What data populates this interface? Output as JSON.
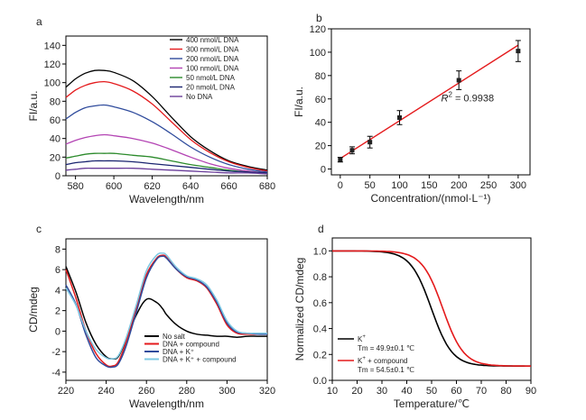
{
  "chart_data": [
    {
      "panel": "a",
      "type": "line",
      "xlabel": "Wavelength/nm",
      "ylabel": "FI/a.u.",
      "xlim": [
        575,
        680
      ],
      "ylim": [
        0,
        150
      ],
      "xticks": [
        580,
        600,
        620,
        640,
        660,
        680
      ],
      "yticks": [
        0,
        20,
        40,
        60,
        80,
        100,
        120,
        140
      ],
      "legend_position": "top-right",
      "x": [
        575,
        580,
        585,
        590,
        595,
        600,
        610,
        620,
        630,
        640,
        650,
        660,
        670,
        680
      ],
      "series": [
        {
          "name": "400 nmol/L DNA",
          "color": "#000000",
          "values": [
            95,
            104,
            110,
            113,
            113,
            111,
            102,
            85,
            63,
            42,
            27,
            16,
            10,
            6
          ]
        },
        {
          "name": "300 nmol/L DNA",
          "color": "#e41a1c",
          "values": [
            84,
            92,
            97,
            100,
            101,
            99,
            91,
            77,
            58,
            39,
            25,
            15,
            9,
            5
          ]
        },
        {
          "name": "200 nmol/L DNA",
          "color": "#2f4b9c",
          "values": [
            61,
            68,
            73,
            75,
            76,
            74,
            68,
            58,
            45,
            31,
            20,
            12,
            7,
            4
          ]
        },
        {
          "name": "100 nmol/L DNA",
          "color": "#b343b3",
          "values": [
            34,
            38,
            41,
            43,
            44,
            43,
            40,
            35,
            28,
            20,
            13,
            8,
            5,
            3
          ]
        },
        {
          "name": "50 nmol/L DNA",
          "color": "#2b8a2b",
          "values": [
            19,
            21,
            23,
            24,
            24,
            24,
            22,
            20,
            16,
            12,
            9,
            6,
            4,
            3
          ]
        },
        {
          "name": "20 nmol/L DNA",
          "color": "#1a2470",
          "values": [
            12,
            14,
            15,
            16,
            16,
            16,
            15,
            13,
            11,
            9,
            7,
            5,
            4,
            3
          ]
        },
        {
          "name": "No DNA",
          "color": "#6a3d9a",
          "values": [
            6,
            7,
            8,
            8,
            8,
            8,
            8,
            7,
            6,
            5,
            4,
            3,
            3,
            2
          ]
        }
      ]
    },
    {
      "panel": "b",
      "type": "scatter",
      "xlabel": "Concentration/(nmol·L⁻¹)",
      "ylabel": "FI/a.u.",
      "xlim": [
        -15,
        320
      ],
      "ylim": [
        -5,
        120
      ],
      "xticks": [
        0,
        50,
        100,
        150,
        200,
        250,
        300
      ],
      "yticks": [
        0,
        20,
        40,
        60,
        80,
        100,
        120
      ],
      "points": [
        {
          "x": 0,
          "y": 8,
          "err": 2
        },
        {
          "x": 20,
          "y": 16,
          "err": 3
        },
        {
          "x": 50,
          "y": 23,
          "err": 5
        },
        {
          "x": 100,
          "y": 44,
          "err": 6
        },
        {
          "x": 200,
          "y": 76,
          "err": 8
        },
        {
          "x": 300,
          "y": 101,
          "err": 9
        }
      ],
      "fit": {
        "x": [
          0,
          300
        ],
        "y": [
          9,
          106
        ],
        "color": "#e41a1c"
      },
      "annotation_r": "R",
      "annotation_sup": "2",
      "annotation_value": " = 0.9938"
    },
    {
      "panel": "c",
      "type": "line",
      "xlabel": "Wavelength/nm",
      "ylabel": "CD/mdeg",
      "xlim": [
        220,
        320
      ],
      "ylim": [
        -4.8,
        9
      ],
      "xticks": [
        220,
        240,
        260,
        280,
        300,
        320
      ],
      "yticks": [
        -4,
        -2,
        0,
        2,
        4,
        6,
        8
      ],
      "legend_position": "bottom-center",
      "x": [
        220,
        225,
        230,
        235,
        240,
        243,
        246,
        250,
        255,
        260,
        265,
        268,
        270,
        275,
        280,
        285,
        290,
        295,
        300,
        305,
        310,
        315,
        320
      ],
      "series": [
        {
          "name": "No salt",
          "color": "#000000",
          "values": [
            6.3,
            3.8,
            0.8,
            -1.3,
            -2.5,
            -2.7,
            -2.5,
            -0.8,
            1.6,
            3.1,
            2.8,
            2.2,
            1.6,
            0.6,
            0.0,
            -0.3,
            -0.4,
            -0.5,
            -0.5,
            -0.6,
            -0.5,
            -0.5,
            -0.5
          ]
        },
        {
          "name": "DNA + compound",
          "color": "#e41a1c",
          "values": [
            6.0,
            3.2,
            0.0,
            -2.2,
            -3.3,
            -3.4,
            -3.0,
            -1.0,
            2.3,
            5.5,
            7.1,
            7.4,
            7.2,
            6.0,
            5.2,
            4.9,
            4.2,
            2.6,
            0.6,
            -0.2,
            -0.3,
            -0.3,
            -0.3
          ]
        },
        {
          "name": "DNA + K⁺",
          "color": "#2f4b9c",
          "values": [
            4.5,
            2.6,
            -0.4,
            -2.6,
            -3.4,
            -3.5,
            -3.2,
            -1.4,
            1.9,
            5.2,
            7.0,
            7.3,
            7.1,
            6.0,
            5.3,
            5.0,
            4.3,
            2.8,
            0.8,
            -0.1,
            -0.2,
            -0.3,
            -0.3
          ]
        },
        {
          "name": "DNA + K⁺ + compound",
          "color": "#7ec8e3",
          "values": [
            4.2,
            2.5,
            0.0,
            -1.8,
            -2.6,
            -2.7,
            -2.4,
            -0.6,
            2.6,
            5.9,
            7.4,
            7.6,
            7.4,
            6.2,
            5.4,
            5.1,
            4.5,
            3.0,
            1.0,
            0.0,
            -0.2,
            -0.2,
            -0.2
          ]
        }
      ]
    },
    {
      "panel": "d",
      "type": "line",
      "xlabel": "Temperature/℃",
      "ylabel": "Normalized CD/mdeg",
      "xlim": [
        10,
        90
      ],
      "ylim": [
        0,
        1.1
      ],
      "xticks": [
        10,
        20,
        30,
        40,
        50,
        60,
        70,
        80,
        90
      ],
      "yticks": [
        0.0,
        0.2,
        0.4,
        0.6,
        0.8,
        1.0
      ],
      "legend_position": "bottom-left",
      "series": [
        {
          "name": "K",
          "name_sup": "+",
          "tm_label": "Tm = 49.9±0.1 ℃",
          "color": "#000000",
          "tm": 49.9,
          "width": 4.2,
          "low": 0.11,
          "high": 1.0
        },
        {
          "name": "K",
          "name_sup": "+",
          "name_suffix": " + compound",
          "tm_label": "Tm = 54.5±0.1 ℃",
          "color": "#e41a1c",
          "tm": 54.5,
          "width": 4.2,
          "low": 0.11,
          "high": 1.0
        }
      ]
    }
  ]
}
